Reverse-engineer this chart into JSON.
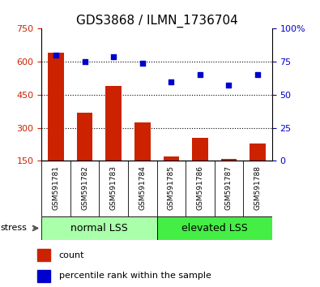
{
  "title": "GDS3868 / ILMN_1736704",
  "samples": [
    "GSM591781",
    "GSM591782",
    "GSM591783",
    "GSM591784",
    "GSM591785",
    "GSM591786",
    "GSM591787",
    "GSM591788"
  ],
  "bar_values": [
    640,
    370,
    490,
    325,
    170,
    255,
    160,
    230
  ],
  "percentile_values": [
    80,
    75,
    79,
    74,
    60,
    65,
    57,
    65
  ],
  "groups": [
    {
      "label": "normal LSS",
      "start": 0,
      "end": 4,
      "color": "#AAFFAA"
    },
    {
      "label": "elevated LSS",
      "start": 4,
      "end": 8,
      "color": "#44EE44"
    }
  ],
  "bar_color": "#CC2200",
  "dot_color": "#0000CC",
  "ylim_left": [
    150,
    750
  ],
  "ylim_right": [
    0,
    100
  ],
  "yticks_left": [
    150,
    300,
    450,
    600,
    750
  ],
  "yticks_right": [
    0,
    25,
    50,
    75,
    100
  ],
  "stress_label": "stress",
  "legend_count": "count",
  "legend_pct": "percentile rank within the sample",
  "tick_label_color_left": "#CC2200",
  "tick_label_color_right": "#0000CC",
  "background_color": "#ffffff",
  "sample_bg_color": "#D3D3D3",
  "group_label_fontsize": 9,
  "title_fontsize": 11,
  "dotted_line_color": "black",
  "dotted_gridlines": [
    300,
    450,
    600
  ]
}
